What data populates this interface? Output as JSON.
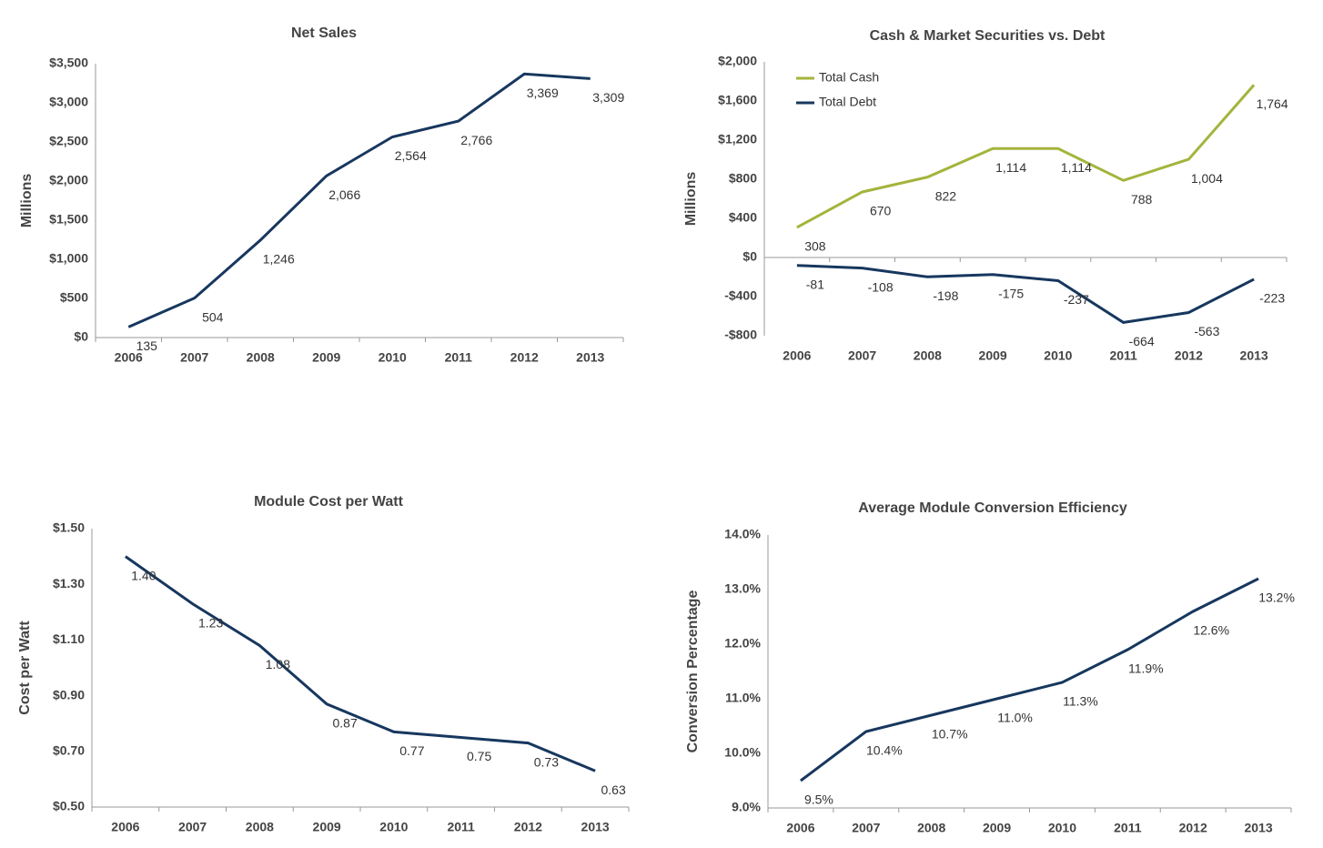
{
  "chart_data": [
    {
      "type": "line",
      "title": "Net Sales",
      "ylabel": "Millions",
      "categories": [
        "2006",
        "2007",
        "2008",
        "2009",
        "2010",
        "2011",
        "2012",
        "2013"
      ],
      "values": [
        135,
        504,
        1246,
        2066,
        2564,
        2766,
        3369,
        3309
      ],
      "value_labels": [
        "135",
        "504",
        "1,246",
        "2,066",
        "2,564",
        "2,766",
        "3,369",
        "3,309"
      ],
      "color": "#17375e",
      "ylim": [
        0,
        3500
      ],
      "yticks": [
        {
          "value": 0,
          "label": "$0"
        },
        {
          "value": 500,
          "label": "$500"
        },
        {
          "value": 1000,
          "label": "$1,000"
        },
        {
          "value": 1500,
          "label": "$1,500"
        },
        {
          "value": 2000,
          "label": "$2,000"
        },
        {
          "value": 2500,
          "label": "$2,500"
        },
        {
          "value": 3000,
          "label": "$3,000"
        },
        {
          "value": 3500,
          "label": "$3,500"
        }
      ]
    },
    {
      "type": "line",
      "title": "Cash & Market Securities vs. Debt",
      "ylabel": "Millions",
      "categories": [
        "2006",
        "2007",
        "2008",
        "2009",
        "2010",
        "2011",
        "2012",
        "2013"
      ],
      "series": [
        {
          "name": "Total Cash",
          "color": "#a4b43c",
          "values": [
            308,
            670,
            822,
            1114,
            1114,
            788,
            1004,
            1764
          ],
          "value_labels": [
            "308",
            "670",
            "822",
            "1,114",
            "1,114",
            "788",
            "1,004",
            "1,764"
          ]
        },
        {
          "name": "Total Debt",
          "color": "#17375e",
          "values": [
            -81,
            -108,
            -198,
            -175,
            -237,
            -664,
            -563,
            -223
          ],
          "value_labels": [
            "-81",
            "-108",
            "-198",
            "-175",
            "-237",
            "-664",
            "-563",
            "-223"
          ]
        }
      ],
      "legend": "upper left",
      "ylim": [
        -800,
        2000
      ],
      "yticks": [
        {
          "value": -800,
          "label": "-$800"
        },
        {
          "value": -400,
          "label": "-$400"
        },
        {
          "value": 0,
          "label": "$0"
        },
        {
          "value": 400,
          "label": "$400"
        },
        {
          "value": 800,
          "label": "$800"
        },
        {
          "value": 1200,
          "label": "$1,200"
        },
        {
          "value": 1600,
          "label": "$1,600"
        },
        {
          "value": 2000,
          "label": "$2,000"
        }
      ]
    },
    {
      "type": "line",
      "title": "Module Cost per Watt",
      "ylabel": "Cost per Watt",
      "categories": [
        "2006",
        "2007",
        "2008",
        "2009",
        "2010",
        "2011",
        "2012",
        "2013"
      ],
      "values": [
        1.4,
        1.23,
        1.08,
        0.87,
        0.77,
        0.75,
        0.73,
        0.63
      ],
      "value_labels": [
        "1.40",
        "1.23",
        "1.08",
        "0.87",
        "0.77",
        "0.75",
        "0.73",
        "0.63"
      ],
      "color": "#17375e",
      "ylim": [
        0.5,
        1.5
      ],
      "yticks": [
        {
          "value": 0.5,
          "label": "$0.50"
        },
        {
          "value": 0.7,
          "label": "$0.70"
        },
        {
          "value": 0.9,
          "label": "$0.90"
        },
        {
          "value": 1.1,
          "label": "$1.10"
        },
        {
          "value": 1.3,
          "label": "$1.30"
        },
        {
          "value": 1.5,
          "label": "$1.50"
        }
      ]
    },
    {
      "type": "line",
      "title": "Average Module Conversion Efficiency",
      "ylabel": "Conversion Percentage",
      "categories": [
        "2006",
        "2007",
        "2008",
        "2009",
        "2010",
        "2011",
        "2012",
        "2013"
      ],
      "values": [
        9.5,
        10.4,
        10.7,
        11.0,
        11.3,
        11.9,
        12.6,
        13.2
      ],
      "value_labels": [
        "9.5%",
        "10.4%",
        "10.7%",
        "11.0%",
        "11.3%",
        "11.9%",
        "12.6%",
        "13.2%"
      ],
      "color": "#17375e",
      "ylim": [
        9,
        14
      ],
      "yticks": [
        {
          "value": 9,
          "label": "9.0%"
        },
        {
          "value": 10,
          "label": "10.0%"
        },
        {
          "value": 11,
          "label": "11.0%"
        },
        {
          "value": 12,
          "label": "12.0%"
        },
        {
          "value": 13,
          "label": "13.0%"
        },
        {
          "value": 14,
          "label": "14.0%"
        }
      ]
    }
  ]
}
